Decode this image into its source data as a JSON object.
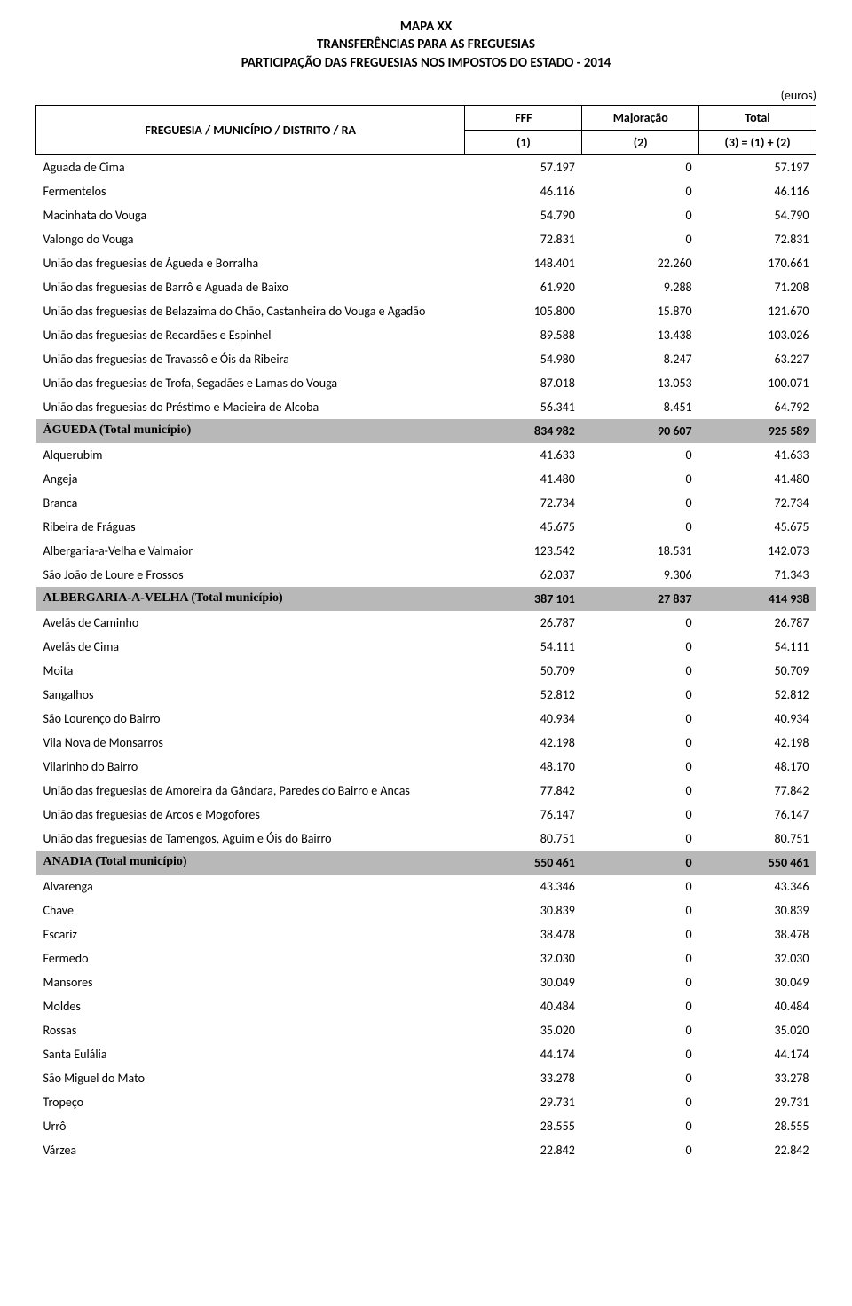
{
  "title": {
    "line1": "MAPA XX",
    "line2": "TRANSFERÊNCIAS PARA AS FREGUESIAS",
    "line3": "PARTICIPAÇÃO DAS FREGUESIAS NOS IMPOSTOS DO ESTADO - 2014"
  },
  "currency_label": "(euros)",
  "header": {
    "label_col": "FREGUESIA / MUNICÍPIO / DISTRITO / RA",
    "fff": "FFF",
    "majoracao": "Majoração",
    "total": "Total",
    "sub1": "(1)",
    "sub2": "(2)",
    "sub3": "(3) = (1) + (2)"
  },
  "colors": {
    "muni_bg": "#b8b8b8",
    "border": "#000000",
    "text": "#000000",
    "bg": "#ffffff"
  },
  "rows": [
    {
      "type": "row",
      "label": "Aguada de Cima",
      "fff": "57.197",
      "maj": "0",
      "tot": "57.197"
    },
    {
      "type": "row",
      "label": "Fermentelos",
      "fff": "46.116",
      "maj": "0",
      "tot": "46.116"
    },
    {
      "type": "row",
      "label": "Macinhata do Vouga",
      "fff": "54.790",
      "maj": "0",
      "tot": "54.790"
    },
    {
      "type": "row",
      "label": "Valongo do Vouga",
      "fff": "72.831",
      "maj": "0",
      "tot": "72.831"
    },
    {
      "type": "row",
      "label": "União das freguesias de Águeda e Borralha",
      "fff": "148.401",
      "maj": "22.260",
      "tot": "170.661"
    },
    {
      "type": "row",
      "label": "União das freguesias de Barrô e Aguada de Baixo",
      "fff": "61.920",
      "maj": "9.288",
      "tot": "71.208"
    },
    {
      "type": "row",
      "label": "União das freguesias de Belazaima do Chão, Castanheira do Vouga e Agadão",
      "fff": "105.800",
      "maj": "15.870",
      "tot": "121.670"
    },
    {
      "type": "row",
      "label": "União das freguesias de Recardães e Espinhel",
      "fff": "89.588",
      "maj": "13.438",
      "tot": "103.026"
    },
    {
      "type": "row",
      "label": "União das freguesias de Travassô e Óis da Ribeira",
      "fff": "54.980",
      "maj": "8.247",
      "tot": "63.227"
    },
    {
      "type": "row",
      "label": "União das freguesias de Trofa, Segadães e Lamas do Vouga",
      "fff": "87.018",
      "maj": "13.053",
      "tot": "100.071"
    },
    {
      "type": "row",
      "label": "União das freguesias do Préstimo e Macieira de Alcoba",
      "fff": "56.341",
      "maj": "8.451",
      "tot": "64.792"
    },
    {
      "type": "muni",
      "label": "ÁGUEDA (Total município)",
      "fff": "834 982",
      "maj": "90 607",
      "tot": "925 589"
    },
    {
      "type": "row",
      "label": "Alquerubim",
      "fff": "41.633",
      "maj": "0",
      "tot": "41.633"
    },
    {
      "type": "row",
      "label": "Angeja",
      "fff": "41.480",
      "maj": "0",
      "tot": "41.480"
    },
    {
      "type": "row",
      "label": "Branca",
      "fff": "72.734",
      "maj": "0",
      "tot": "72.734"
    },
    {
      "type": "row",
      "label": "Ribeira de Fráguas",
      "fff": "45.675",
      "maj": "0",
      "tot": "45.675"
    },
    {
      "type": "row",
      "label": "Albergaria-a-Velha e Valmaior",
      "fff": "123.542",
      "maj": "18.531",
      "tot": "142.073"
    },
    {
      "type": "row",
      "label": "São João de Loure e Frossos",
      "fff": "62.037",
      "maj": "9.306",
      "tot": "71.343"
    },
    {
      "type": "muni",
      "label": "ALBERGARIA-A-VELHA (Total município)",
      "fff": "387 101",
      "maj": "27 837",
      "tot": "414 938"
    },
    {
      "type": "row",
      "label": "Avelãs de Caminho",
      "fff": "26.787",
      "maj": "0",
      "tot": "26.787"
    },
    {
      "type": "row",
      "label": "Avelãs de Cima",
      "fff": "54.111",
      "maj": "0",
      "tot": "54.111"
    },
    {
      "type": "row",
      "label": "Moita",
      "fff": "50.709",
      "maj": "0",
      "tot": "50.709"
    },
    {
      "type": "row",
      "label": "Sangalhos",
      "fff": "52.812",
      "maj": "0",
      "tot": "52.812"
    },
    {
      "type": "row",
      "label": "São Lourenço do Bairro",
      "fff": "40.934",
      "maj": "0",
      "tot": "40.934"
    },
    {
      "type": "row",
      "label": "Vila Nova de Monsarros",
      "fff": "42.198",
      "maj": "0",
      "tot": "42.198"
    },
    {
      "type": "row",
      "label": "Vilarinho do Bairro",
      "fff": "48.170",
      "maj": "0",
      "tot": "48.170"
    },
    {
      "type": "row",
      "label": "União das freguesias de Amoreira da Gândara, Paredes do Bairro e Ancas",
      "fff": "77.842",
      "maj": "0",
      "tot": "77.842"
    },
    {
      "type": "row",
      "label": "União das freguesias de Arcos e Mogofores",
      "fff": "76.147",
      "maj": "0",
      "tot": "76.147"
    },
    {
      "type": "row",
      "label": "União das freguesias de Tamengos, Aguim e Óis do Bairro",
      "fff": "80.751",
      "maj": "0",
      "tot": "80.751"
    },
    {
      "type": "muni",
      "label": "ANADIA (Total município)",
      "fff": "550 461",
      "maj": "0",
      "tot": "550 461"
    },
    {
      "type": "row",
      "label": "Alvarenga",
      "fff": "43.346",
      "maj": "0",
      "tot": "43.346"
    },
    {
      "type": "row",
      "label": "Chave",
      "fff": "30.839",
      "maj": "0",
      "tot": "30.839"
    },
    {
      "type": "row",
      "label": "Escariz",
      "fff": "38.478",
      "maj": "0",
      "tot": "38.478"
    },
    {
      "type": "row",
      "label": "Fermedo",
      "fff": "32.030",
      "maj": "0",
      "tot": "32.030"
    },
    {
      "type": "row",
      "label": "Mansores",
      "fff": "30.049",
      "maj": "0",
      "tot": "30.049"
    },
    {
      "type": "row",
      "label": "Moldes",
      "fff": "40.484",
      "maj": "0",
      "tot": "40.484"
    },
    {
      "type": "row",
      "label": "Rossas",
      "fff": "35.020",
      "maj": "0",
      "tot": "35.020"
    },
    {
      "type": "row",
      "label": "Santa Eulália",
      "fff": "44.174",
      "maj": "0",
      "tot": "44.174"
    },
    {
      "type": "row",
      "label": "São Miguel do Mato",
      "fff": "33.278",
      "maj": "0",
      "tot": "33.278"
    },
    {
      "type": "row",
      "label": "Tropeço",
      "fff": "29.731",
      "maj": "0",
      "tot": "29.731"
    },
    {
      "type": "row",
      "label": "Urrô",
      "fff": "28.555",
      "maj": "0",
      "tot": "28.555"
    },
    {
      "type": "row",
      "label": "Várzea",
      "fff": "22.842",
      "maj": "0",
      "tot": "22.842"
    }
  ]
}
